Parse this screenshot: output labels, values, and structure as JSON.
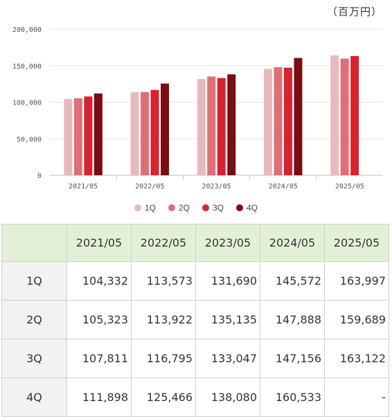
{
  "unit_label": "（百万円）",
  "chart_data": {
    "type": "bar",
    "categories": [
      "2021/05",
      "2022/05",
      "2023/05",
      "2024/05",
      "2025/05"
    ],
    "series": [
      {
        "name": "1Q",
        "color": "#e8b9bc",
        "values": [
          104332,
          113573,
          131690,
          145572,
          163997
        ]
      },
      {
        "name": "2Q",
        "color": "#dd6f79",
        "values": [
          105323,
          113922,
          135135,
          147888,
          159689
        ]
      },
      {
        "name": "3Q",
        "color": "#d9222f",
        "values": [
          107811,
          116795,
          133047,
          147156,
          163122
        ]
      },
      {
        "name": "4Q",
        "color": "#7a0d14",
        "values": [
          111898,
          125466,
          138080,
          160533,
          null
        ]
      }
    ],
    "ylim": [
      0,
      200000
    ],
    "yticks": [
      "200,000",
      "150,000",
      "100,000",
      "50,000",
      "0"
    ],
    "ytick_values": [
      200000,
      150000,
      100000,
      50000,
      0
    ],
    "grid": true,
    "legend_position": "bottom"
  },
  "table": {
    "corner": "",
    "headers": [
      "2021/05",
      "2022/05",
      "2023/05",
      "2024/05",
      "2025/05"
    ],
    "rows": [
      {
        "label": "1Q",
        "cells": [
          "104,332",
          "113,573",
          "131,690",
          "145,572",
          "163,997"
        ]
      },
      {
        "label": "2Q",
        "cells": [
          "105,323",
          "113,922",
          "135,135",
          "147,888",
          "159,689"
        ]
      },
      {
        "label": "3Q",
        "cells": [
          "107,811",
          "116,795",
          "133,047",
          "147,156",
          "163,122"
        ]
      },
      {
        "label": "4Q",
        "cells": [
          "111,898",
          "125,466",
          "138,080",
          "160,533",
          "-"
        ]
      }
    ]
  }
}
